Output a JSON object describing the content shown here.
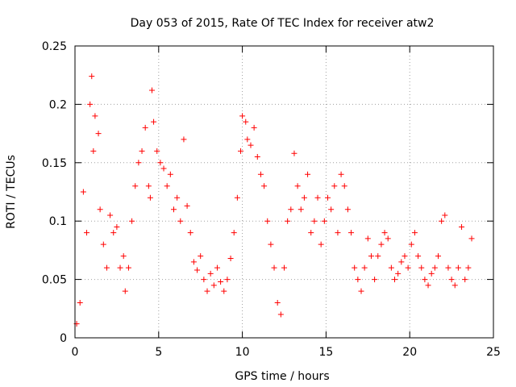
{
  "chart_data": {
    "type": "scatter",
    "title": "Day 053 of 2015, Rate Of TEC Index for receiver atw2",
    "xlabel": "GPS time / hours",
    "ylabel": "ROTI / TECUs",
    "xlim": [
      0,
      25
    ],
    "ylim": [
      0,
      0.25
    ],
    "xticks": [
      0,
      5,
      10,
      15,
      20,
      25
    ],
    "yticks": [
      0,
      0.05,
      0.1,
      0.15,
      0.2,
      0.25
    ],
    "xtick_labels": [
      "0",
      "5",
      "10",
      "15",
      "20",
      "25"
    ],
    "ytick_labels": [
      "0",
      "0.05",
      "0.1",
      "0.15",
      "0.2",
      "0.25"
    ],
    "grid": true,
    "marker": "plus",
    "color": "#ff0000",
    "series": [
      {
        "points": [
          [
            0.1,
            0.012
          ],
          [
            0.3,
            0.03
          ],
          [
            0.5,
            0.125
          ],
          [
            0.7,
            0.09
          ],
          [
            0.9,
            0.2
          ],
          [
            1.0,
            0.224
          ],
          [
            1.1,
            0.16
          ],
          [
            1.2,
            0.19
          ],
          [
            1.4,
            0.175
          ],
          [
            1.5,
            0.11
          ],
          [
            1.7,
            0.08
          ],
          [
            1.9,
            0.06
          ],
          [
            2.1,
            0.105
          ],
          [
            2.3,
            0.09
          ],
          [
            2.5,
            0.095
          ],
          [
            2.7,
            0.06
          ],
          [
            2.9,
            0.07
          ],
          [
            3.0,
            0.04
          ],
          [
            3.2,
            0.06
          ],
          [
            3.4,
            0.1
          ],
          [
            3.6,
            0.13
          ],
          [
            3.8,
            0.15
          ],
          [
            4.0,
            0.16
          ],
          [
            4.2,
            0.18
          ],
          [
            4.4,
            0.13
          ],
          [
            4.5,
            0.12
          ],
          [
            4.6,
            0.212
          ],
          [
            4.7,
            0.185
          ],
          [
            4.9,
            0.16
          ],
          [
            5.1,
            0.15
          ],
          [
            5.3,
            0.145
          ],
          [
            5.5,
            0.13
          ],
          [
            5.7,
            0.14
          ],
          [
            5.9,
            0.11
          ],
          [
            6.1,
            0.12
          ],
          [
            6.3,
            0.1
          ],
          [
            6.5,
            0.17
          ],
          [
            6.7,
            0.113
          ],
          [
            6.9,
            0.09
          ],
          [
            7.1,
            0.065
          ],
          [
            7.3,
            0.058
          ],
          [
            7.5,
            0.07
          ],
          [
            7.7,
            0.05
          ],
          [
            7.9,
            0.04
          ],
          [
            8.1,
            0.055
          ],
          [
            8.3,
            0.045
          ],
          [
            8.5,
            0.06
          ],
          [
            8.7,
            0.048
          ],
          [
            8.9,
            0.04
          ],
          [
            9.1,
            0.05
          ],
          [
            9.3,
            0.068
          ],
          [
            9.5,
            0.09
          ],
          [
            9.7,
            0.12
          ],
          [
            9.9,
            0.16
          ],
          [
            10.0,
            0.19
          ],
          [
            10.2,
            0.185
          ],
          [
            10.3,
            0.17
          ],
          [
            10.5,
            0.165
          ],
          [
            10.7,
            0.18
          ],
          [
            10.9,
            0.155
          ],
          [
            11.1,
            0.14
          ],
          [
            11.3,
            0.13
          ],
          [
            11.5,
            0.1
          ],
          [
            11.7,
            0.08
          ],
          [
            11.9,
            0.06
          ],
          [
            12.1,
            0.03
          ],
          [
            12.3,
            0.02
          ],
          [
            12.5,
            0.06
          ],
          [
            12.7,
            0.1
          ],
          [
            12.9,
            0.11
          ],
          [
            13.1,
            0.158
          ],
          [
            13.3,
            0.13
          ],
          [
            13.5,
            0.11
          ],
          [
            13.7,
            0.12
          ],
          [
            13.9,
            0.14
          ],
          [
            14.1,
            0.09
          ],
          [
            14.3,
            0.1
          ],
          [
            14.5,
            0.12
          ],
          [
            14.7,
            0.08
          ],
          [
            14.9,
            0.1
          ],
          [
            15.1,
            0.12
          ],
          [
            15.3,
            0.11
          ],
          [
            15.5,
            0.13
          ],
          [
            15.7,
            0.09
          ],
          [
            15.9,
            0.14
          ],
          [
            16.1,
            0.13
          ],
          [
            16.3,
            0.11
          ],
          [
            16.5,
            0.09
          ],
          [
            16.7,
            0.06
          ],
          [
            16.9,
            0.05
          ],
          [
            17.1,
            0.04
          ],
          [
            17.3,
            0.06
          ],
          [
            17.5,
            0.085
          ],
          [
            17.7,
            0.07
          ],
          [
            17.9,
            0.05
          ],
          [
            18.1,
            0.07
          ],
          [
            18.3,
            0.08
          ],
          [
            18.5,
            0.09
          ],
          [
            18.7,
            0.085
          ],
          [
            18.9,
            0.06
          ],
          [
            19.1,
            0.05
          ],
          [
            19.3,
            0.055
          ],
          [
            19.5,
            0.065
          ],
          [
            19.7,
            0.07
          ],
          [
            19.9,
            0.06
          ],
          [
            20.1,
            0.08
          ],
          [
            20.3,
            0.09
          ],
          [
            20.5,
            0.07
          ],
          [
            20.7,
            0.06
          ],
          [
            20.9,
            0.05
          ],
          [
            21.1,
            0.045
          ],
          [
            21.3,
            0.055
          ],
          [
            21.5,
            0.06
          ],
          [
            21.7,
            0.07
          ],
          [
            21.9,
            0.1
          ],
          [
            22.1,
            0.105
          ],
          [
            22.3,
            0.06
          ],
          [
            22.5,
            0.05
          ],
          [
            22.7,
            0.045
          ],
          [
            22.9,
            0.06
          ],
          [
            23.1,
            0.095
          ],
          [
            23.3,
            0.05
          ],
          [
            23.5,
            0.06
          ],
          [
            23.7,
            0.085
          ]
        ]
      }
    ]
  }
}
